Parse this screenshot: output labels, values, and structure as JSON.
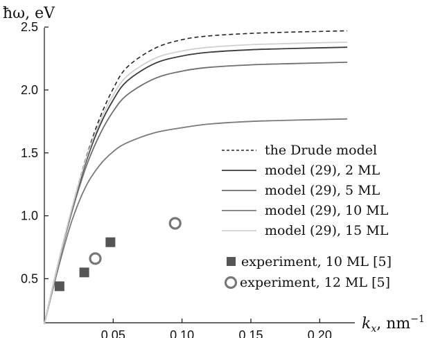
{
  "chart_data": {
    "type": "line",
    "ylabel": "ħω, eV",
    "xlabel": "k_x, nm^-1",
    "xlabel_main": "k",
    "xlabel_sub": "x",
    "xlabel_rest": ", nm",
    "xlabel_sup": "−1",
    "xlim": [
      0,
      0.225
    ],
    "ylim": [
      0.15,
      2.55
    ],
    "x_ticks": [
      0.05,
      0.1,
      0.15,
      0.2
    ],
    "x_tick_labels": [
      "0.05",
      "0.10",
      "0.15",
      "0.20"
    ],
    "y_ticks": [
      0.5,
      1.0,
      1.5,
      2.0,
      2.5
    ],
    "y_tick_labels": [
      "0.5",
      "1.0",
      "1.5",
      "2.0",
      "2.5"
    ],
    "legend_placement": "right",
    "series": [
      {
        "name": "the Drude model",
        "color": "#222222",
        "dash": true,
        "x": [
          0,
          0.01,
          0.02,
          0.03,
          0.04,
          0.05,
          0.06,
          0.08,
          0.1,
          0.12,
          0.15,
          0.18,
          0.22
        ],
        "y": [
          0.14,
          0.62,
          1.06,
          1.45,
          1.77,
          2.01,
          2.18,
          2.33,
          2.4,
          2.43,
          2.45,
          2.46,
          2.47
        ]
      },
      {
        "name": "model (29), 2 ML",
        "color": "#3a3a3a",
        "dash": false,
        "x": [
          0,
          0.01,
          0.02,
          0.03,
          0.04,
          0.05,
          0.06,
          0.08,
          0.1,
          0.12,
          0.15,
          0.18,
          0.22
        ],
        "y": [
          0.14,
          0.62,
          1.05,
          1.42,
          1.71,
          1.92,
          2.07,
          2.21,
          2.27,
          2.3,
          2.32,
          2.33,
          2.34
        ]
      },
      {
        "name": "model (29), 5 ML",
        "color": "#6e6e6e",
        "dash": false,
        "x": [
          0,
          0.01,
          0.02,
          0.03,
          0.04,
          0.05,
          0.06,
          0.08,
          0.1,
          0.12,
          0.15,
          0.18,
          0.22
        ],
        "y": [
          0.14,
          0.61,
          1.03,
          1.38,
          1.64,
          1.83,
          1.96,
          2.09,
          2.15,
          2.18,
          2.2,
          2.21,
          2.22
        ]
      },
      {
        "name": "model (29), 10 ML",
        "color": "#7a7a7a",
        "dash": false,
        "x": [
          0,
          0.01,
          0.02,
          0.03,
          0.04,
          0.05,
          0.06,
          0.08,
          0.1,
          0.12,
          0.15,
          0.18,
          0.22
        ],
        "y": [
          0.14,
          0.58,
          0.96,
          1.23,
          1.4,
          1.51,
          1.58,
          1.66,
          1.7,
          1.73,
          1.75,
          1.76,
          1.77
        ]
      },
      {
        "name": "model (29), 15 ML",
        "color": "#d0d0d0",
        "dash": false,
        "x": [
          0,
          0.01,
          0.02,
          0.03,
          0.04,
          0.05,
          0.06,
          0.08,
          0.1,
          0.12,
          0.15,
          0.18,
          0.22
        ],
        "y": [
          0.14,
          0.62,
          1.06,
          1.44,
          1.74,
          1.96,
          2.11,
          2.25,
          2.31,
          2.34,
          2.36,
          2.37,
          2.38
        ]
      }
    ],
    "experiments": [
      {
        "name": "experiment, 10 ML [5]",
        "marker": "square",
        "color": "#555555",
        "x": [
          0.011,
          0.029,
          0.048
        ],
        "y": [
          0.44,
          0.55,
          0.79
        ]
      },
      {
        "name": "experiment, 12 ML [5]",
        "marker": "circle",
        "color": "#777777",
        "x": [
          0.037,
          0.095
        ],
        "y": [
          0.66,
          0.94
        ]
      }
    ]
  }
}
